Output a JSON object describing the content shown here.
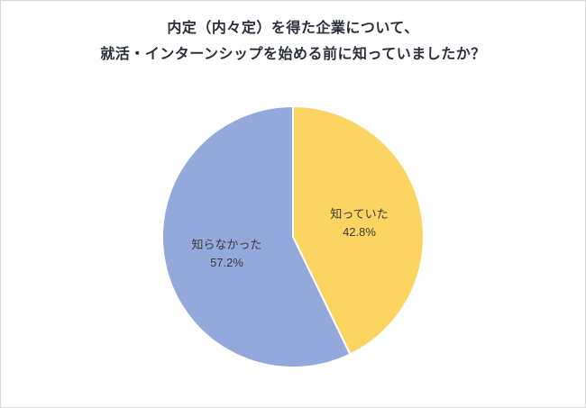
{
  "title": {
    "lines": [
      "内定（内々定）を得た企業について、",
      "就活・インターンシップを始める前に知っていましたか？"
    ]
  },
  "chart_data": {
    "type": "pie",
    "title": "内定（内々定）を得た企業について、就活・インターンシップを始める前に知っていましたか？",
    "start_angle_deg": 0,
    "direction": "clockwise",
    "labels_inside": true,
    "legend": "none",
    "slices": [
      {
        "label": "知っていた",
        "value": 42.8,
        "percent_label": "42.8%",
        "color": "#FBD462"
      },
      {
        "label": "知らなかった",
        "value": 57.2,
        "percent_label": "57.2%",
        "color": "#93A9DB"
      }
    ],
    "slice_border_color": "#ffffff",
    "label_text_color": "#3a3a3a"
  }
}
